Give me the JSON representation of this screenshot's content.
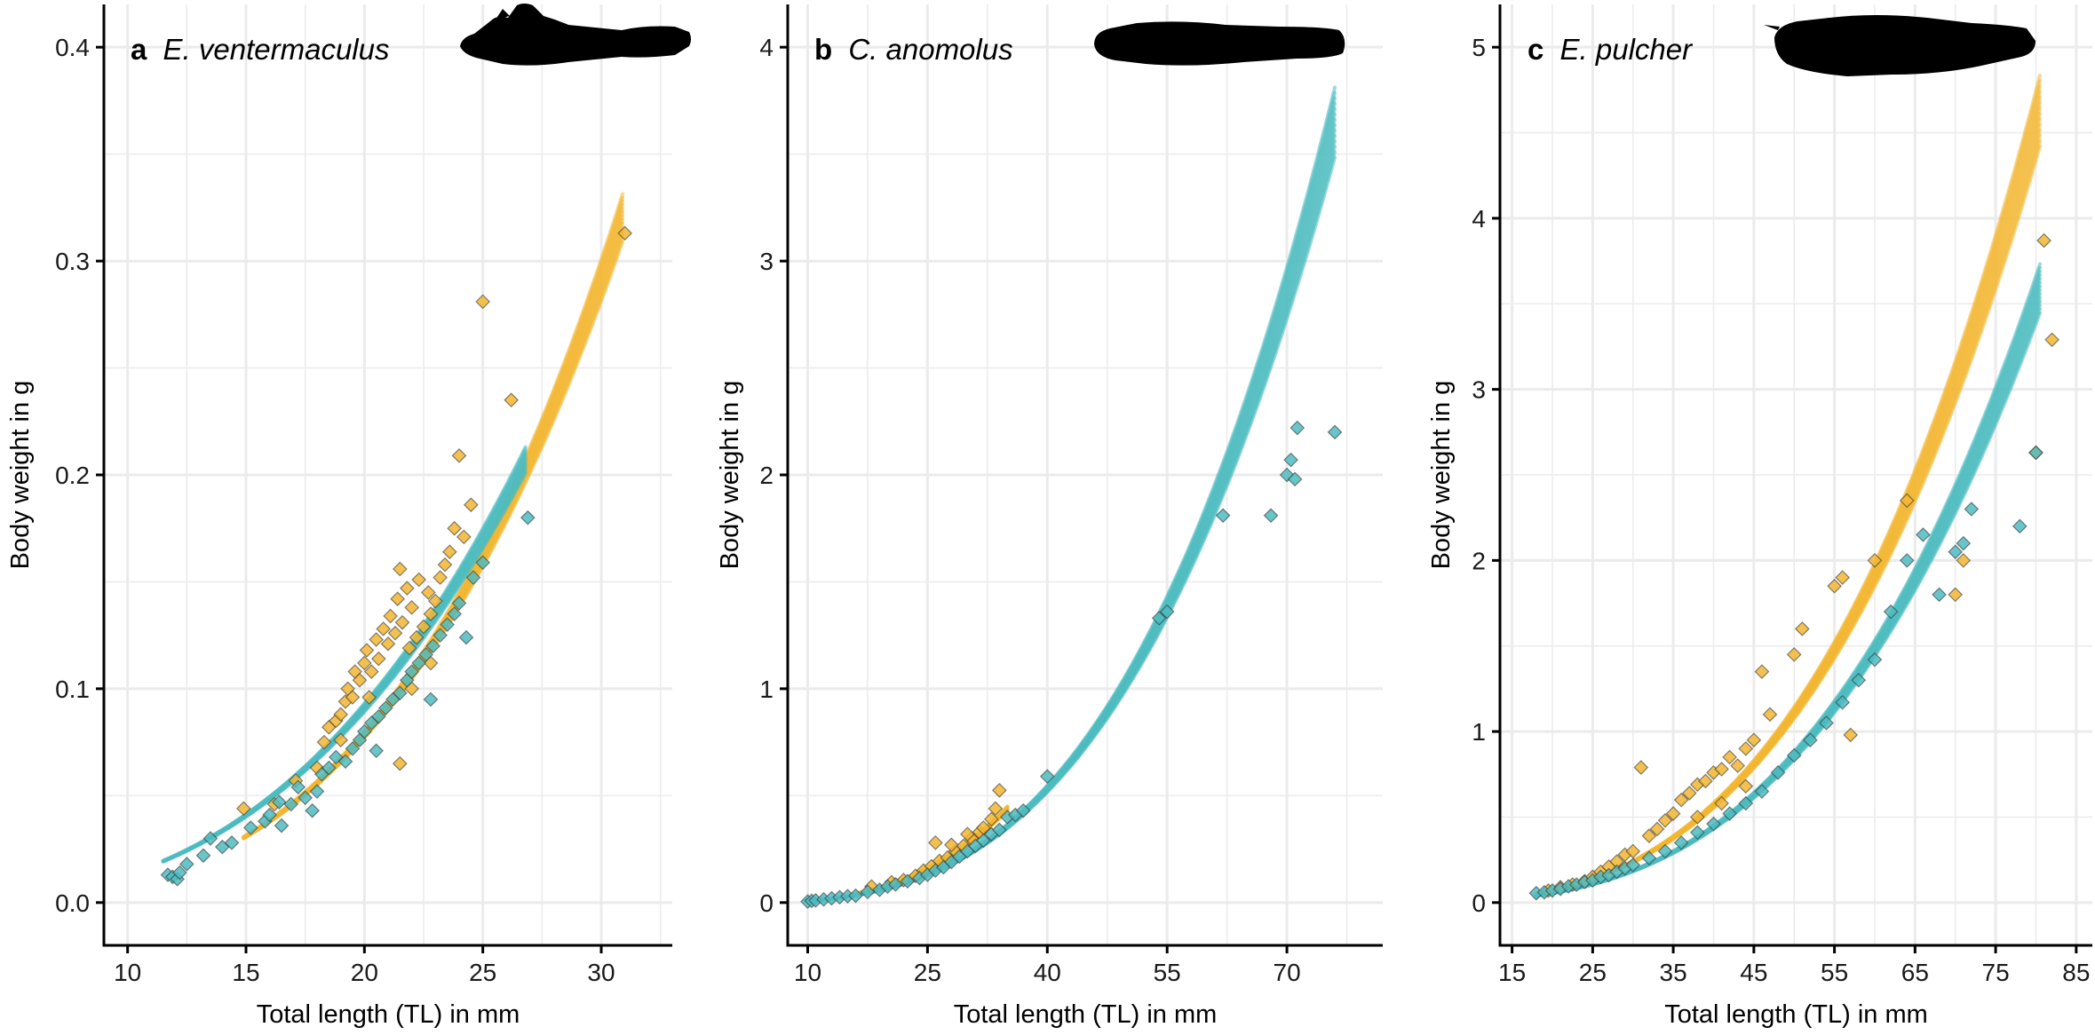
{
  "colors": {
    "female": "#f2b632",
    "male": "#4dbbc0",
    "grid": "#ebebeb",
    "axis": "#000000",
    "silhouette": "#000000"
  },
  "chart_data": [
    {
      "type": "scatter",
      "panel_letter": "a",
      "species": "E. ventermaculus",
      "xlabel": "Total length (TL) in mm",
      "ylabel": "Body weight in g",
      "xlim": [
        9,
        33
      ],
      "ylim": [
        -0.02,
        0.42
      ],
      "xticks": [
        10,
        15,
        20,
        25,
        30
      ],
      "xtick_labels": [
        "10",
        "15",
        "20",
        "25",
        "30"
      ],
      "yticks": [
        0.0,
        0.1,
        0.2,
        0.3,
        0.4
      ],
      "ytick_labels": [
        "0.0",
        "0.1",
        "0.2",
        "0.3",
        "0.4"
      ],
      "grid": true,
      "series": [
        {
          "color": "#f2b632",
          "curve": {
            "a": 4.93e-06,
            "b": 3.23,
            "x_range": [
              14.9,
              30.9
            ],
            "spread": 0.07
          },
          "points": [
            [
              14.9,
              0.044
            ],
            [
              16.2,
              0.046
            ],
            [
              17.1,
              0.057
            ],
            [
              18.3,
              0.075
            ],
            [
              18.5,
              0.082
            ],
            [
              18.8,
              0.085
            ],
            [
              19.0,
              0.088
            ],
            [
              19.2,
              0.094
            ],
            [
              19.3,
              0.1
            ],
            [
              19.5,
              0.096
            ],
            [
              19.6,
              0.108
            ],
            [
              19.8,
              0.104
            ],
            [
              20.0,
              0.112
            ],
            [
              20.1,
              0.118
            ],
            [
              20.3,
              0.108
            ],
            [
              20.5,
              0.123
            ],
            [
              20.6,
              0.114
            ],
            [
              20.8,
              0.128
            ],
            [
              21.0,
              0.121
            ],
            [
              21.1,
              0.134
            ],
            [
              21.3,
              0.126
            ],
            [
              21.4,
              0.142
            ],
            [
              21.5,
              0.156
            ],
            [
              21.6,
              0.131
            ],
            [
              21.8,
              0.147
            ],
            [
              21.9,
              0.119
            ],
            [
              22.0,
              0.138
            ],
            [
              22.2,
              0.124
            ],
            [
              22.3,
              0.151
            ],
            [
              22.5,
              0.129
            ],
            [
              22.7,
              0.145
            ],
            [
              22.8,
              0.135
            ],
            [
              23.0,
              0.141
            ],
            [
              23.2,
              0.152
            ],
            [
              23.4,
              0.158
            ],
            [
              23.6,
              0.164
            ],
            [
              23.8,
              0.175
            ],
            [
              24.0,
              0.209
            ],
            [
              24.2,
              0.171
            ],
            [
              24.5,
              0.186
            ],
            [
              21.5,
              0.065
            ],
            [
              22.0,
              0.1
            ],
            [
              25.0,
              0.281
            ],
            [
              31.0,
              0.313
            ],
            [
              26.2,
              0.235
            ],
            [
              22.8,
              0.112
            ],
            [
              20.2,
              0.096
            ],
            [
              19.0,
              0.076
            ],
            [
              18.0,
              0.063
            ]
          ]
        },
        {
          "color": "#4dbbc0",
          "curve": {
            "a": 2.075e-05,
            "b": 2.8,
            "x_range": [
              11.5,
              26.8
            ],
            "spread": 0.06
          },
          "points": [
            [
              11.7,
              0.013
            ],
            [
              11.9,
              0.012
            ],
            [
              12.1,
              0.011
            ],
            [
              12.2,
              0.014
            ],
            [
              12.5,
              0.018
            ],
            [
              13.2,
              0.022
            ],
            [
              13.5,
              0.03
            ],
            [
              14.0,
              0.026
            ],
            [
              14.4,
              0.028
            ],
            [
              15.2,
              0.035
            ],
            [
              15.8,
              0.038
            ],
            [
              16.0,
              0.041
            ],
            [
              16.4,
              0.047
            ],
            [
              16.9,
              0.046
            ],
            [
              17.2,
              0.054
            ],
            [
              17.5,
              0.049
            ],
            [
              17.8,
              0.043
            ],
            [
              18.0,
              0.052
            ],
            [
              18.2,
              0.06
            ],
            [
              18.5,
              0.063
            ],
            [
              18.8,
              0.068
            ],
            [
              19.2,
              0.066
            ],
            [
              19.5,
              0.072
            ],
            [
              19.8,
              0.076
            ],
            [
              20.0,
              0.08
            ],
            [
              20.3,
              0.084
            ],
            [
              20.6,
              0.087
            ],
            [
              20.9,
              0.091
            ],
            [
              21.2,
              0.095
            ],
            [
              21.5,
              0.098
            ],
            [
              21.8,
              0.104
            ],
            [
              22.0,
              0.108
            ],
            [
              22.3,
              0.112
            ],
            [
              22.6,
              0.116
            ],
            [
              22.9,
              0.12
            ],
            [
              23.2,
              0.125
            ],
            [
              23.5,
              0.13
            ],
            [
              23.8,
              0.135
            ],
            [
              24.0,
              0.14
            ],
            [
              24.3,
              0.124
            ],
            [
              24.6,
              0.152
            ],
            [
              25.0,
              0.159
            ],
            [
              22.8,
              0.095
            ],
            [
              26.9,
              0.18
            ],
            [
              20.5,
              0.071
            ],
            [
              16.5,
              0.036
            ]
          ]
        }
      ],
      "silhouette": "fish-silhouette-a"
    },
    {
      "type": "scatter",
      "panel_letter": "b",
      "species": "C. anomolus",
      "xlabel": "Total length (TL) in mm",
      "ylabel": "Body weight in g",
      "xlim": [
        7.5,
        82
      ],
      "ylim": [
        -0.2,
        4.2
      ],
      "xticks": [
        10,
        25,
        40,
        55,
        70
      ],
      "xtick_labels": [
        "10",
        "25",
        "40",
        "55",
        "70"
      ],
      "yticks": [
        0,
        1,
        2,
        3,
        4
      ],
      "ytick_labels": [
        "0",
        "1",
        "2",
        "3",
        "4"
      ],
      "grid": true,
      "series": [
        {
          "color": "#f2b632",
          "curve": {
            "a": 1.024e-05,
            "b": 3.0,
            "x_range": [
              15.5,
              35.0
            ],
            "spread": 0.05
          },
          "points": [
            [
              18.0,
              0.075
            ],
            [
              20.5,
              0.095
            ],
            [
              22.0,
              0.105
            ],
            [
              23.5,
              0.125
            ],
            [
              24.5,
              0.15
            ],
            [
              25.5,
              0.17
            ],
            [
              26.5,
              0.195
            ],
            [
              27.5,
              0.21
            ],
            [
              28.5,
              0.24
            ],
            [
              29.5,
              0.265
            ],
            [
              30.5,
              0.3
            ],
            [
              31.5,
              0.33
            ],
            [
              32.0,
              0.35
            ],
            [
              33.0,
              0.39
            ],
            [
              33.5,
              0.44
            ],
            [
              34.0,
              0.525
            ],
            [
              26.0,
              0.28
            ],
            [
              28.0,
              0.27
            ],
            [
              30.0,
              0.32
            ]
          ]
        },
        {
          "color": "#4dbbc0",
          "curve": {
            "a": 8.31e-06,
            "b": 3.0,
            "x_range": [
              9.8,
              76.0
            ],
            "spread": 0.09
          },
          "points": [
            [
              10.0,
              0.005
            ],
            [
              10.5,
              0.008
            ],
            [
              11.0,
              0.01
            ],
            [
              12.0,
              0.015
            ],
            [
              13.0,
              0.02
            ],
            [
              14.0,
              0.025
            ],
            [
              15.0,
              0.03
            ],
            [
              16.0,
              0.032
            ],
            [
              17.5,
              0.05
            ],
            [
              19.0,
              0.06
            ],
            [
              20.0,
              0.075
            ],
            [
              21.0,
              0.085
            ],
            [
              22.5,
              0.1
            ],
            [
              24.0,
              0.115
            ],
            [
              25.0,
              0.13
            ],
            [
              26.0,
              0.15
            ],
            [
              27.0,
              0.165
            ],
            [
              28.0,
              0.19
            ],
            [
              29.0,
              0.215
            ],
            [
              30.0,
              0.24
            ],
            [
              31.0,
              0.265
            ],
            [
              32.0,
              0.29
            ],
            [
              33.0,
              0.32
            ],
            [
              34.0,
              0.34
            ],
            [
              35.0,
              0.4
            ],
            [
              36.0,
              0.41
            ],
            [
              37.0,
              0.43
            ],
            [
              40.0,
              0.59
            ],
            [
              55.0,
              1.36
            ],
            [
              54.0,
              1.33
            ],
            [
              62.0,
              1.81
            ],
            [
              70.0,
              2.0
            ],
            [
              70.5,
              2.07
            ],
            [
              71.0,
              1.98
            ],
            [
              71.3,
              2.22
            ],
            [
              68.0,
              1.81
            ],
            [
              76.0,
              2.2
            ]
          ]
        }
      ],
      "silhouette": "fish-silhouette-b"
    },
    {
      "type": "scatter",
      "panel_letter": "c",
      "species": "E. pulcher",
      "xlabel": "Total length (TL) in mm",
      "ylabel": "Body weight in g",
      "xlim": [
        13.5,
        87
      ],
      "ylim": [
        -0.25,
        5.25
      ],
      "xticks": [
        15,
        25,
        35,
        45,
        55,
        65,
        75,
        85
      ],
      "xtick_labels": [
        "15",
        "25",
        "35",
        "45",
        "55",
        "65",
        "75",
        "85"
      ],
      "yticks": [
        0,
        1,
        2,
        3,
        4,
        5
      ],
      "ytick_labels": [
        "0",
        "1",
        "2",
        "3",
        "4",
        "5"
      ],
      "grid": true,
      "series": [
        {
          "color": "#f2b632",
          "curve": {
            "a": 8.87e-06,
            "b": 3.0,
            "x_range": [
              18.0,
              80.5
            ],
            "spread": 0.09
          },
          "points": [
            [
              19.5,
              0.07
            ],
            [
              21.0,
              0.09
            ],
            [
              22.5,
              0.105
            ],
            [
              24.0,
              0.125
            ],
            [
              25.0,
              0.15
            ],
            [
              26.0,
              0.18
            ],
            [
              27.0,
              0.21
            ],
            [
              28.0,
              0.24
            ],
            [
              29.0,
              0.28
            ],
            [
              30.0,
              0.3
            ],
            [
              31.0,
              0.79
            ],
            [
              32.0,
              0.39
            ],
            [
              33.0,
              0.43
            ],
            [
              34.0,
              0.48
            ],
            [
              35.0,
              0.52
            ],
            [
              36.0,
              0.6
            ],
            [
              37.0,
              0.64
            ],
            [
              38.0,
              0.69
            ],
            [
              39.0,
              0.71
            ],
            [
              40.0,
              0.76
            ],
            [
              41.0,
              0.78
            ],
            [
              42.0,
              0.85
            ],
            [
              43.0,
              0.8
            ],
            [
              44.0,
              0.9
            ],
            [
              45.0,
              0.95
            ],
            [
              46.0,
              1.35
            ],
            [
              47.0,
              1.1
            ],
            [
              50.0,
              1.45
            ],
            [
              51.0,
              1.6
            ],
            [
              55.0,
              1.85
            ],
            [
              56.0,
              1.9
            ],
            [
              57.0,
              0.98
            ],
            [
              60.0,
              2.0
            ],
            [
              64.0,
              2.35
            ],
            [
              70.0,
              1.8
            ],
            [
              71.0,
              2.0
            ],
            [
              80.0,
              2.63
            ],
            [
              81.0,
              3.87
            ],
            [
              82.0,
              3.29
            ],
            [
              38.0,
              0.5
            ],
            [
              41.0,
              0.58
            ],
            [
              44.0,
              0.68
            ]
          ]
        },
        {
          "color": "#4dbbc0",
          "curve": {
            "a": 6.88e-06,
            "b": 3.0,
            "x_range": [
              18.0,
              80.5
            ],
            "spread": 0.08
          },
          "points": [
            [
              18.0,
              0.055
            ],
            [
              19.0,
              0.06
            ],
            [
              20.0,
              0.07
            ],
            [
              21.0,
              0.08
            ],
            [
              22.0,
              0.095
            ],
            [
              23.0,
              0.105
            ],
            [
              24.0,
              0.12
            ],
            [
              25.0,
              0.13
            ],
            [
              26.0,
              0.15
            ],
            [
              27.0,
              0.16
            ],
            [
              28.0,
              0.18
            ],
            [
              29.0,
              0.2
            ],
            [
              30.0,
              0.22
            ],
            [
              32.0,
              0.26
            ],
            [
              34.0,
              0.3
            ],
            [
              36.0,
              0.35
            ],
            [
              38.0,
              0.41
            ],
            [
              40.0,
              0.46
            ],
            [
              42.0,
              0.52
            ],
            [
              44.0,
              0.58
            ],
            [
              46.0,
              0.65
            ],
            [
              48.0,
              0.76
            ],
            [
              50.0,
              0.86
            ],
            [
              52.0,
              0.95
            ],
            [
              54.0,
              1.05
            ],
            [
              56.0,
              1.17
            ],
            [
              58.0,
              1.3
            ],
            [
              60.0,
              1.42
            ],
            [
              62.0,
              1.7
            ],
            [
              64.0,
              2.0
            ],
            [
              66.0,
              2.15
            ],
            [
              68.0,
              1.8
            ],
            [
              70.0,
              2.05
            ],
            [
              71.0,
              2.1
            ],
            [
              72.0,
              2.3
            ],
            [
              78.0,
              2.2
            ],
            [
              80.0,
              2.63
            ]
          ]
        }
      ],
      "silhouette": "fish-silhouette-c"
    }
  ]
}
